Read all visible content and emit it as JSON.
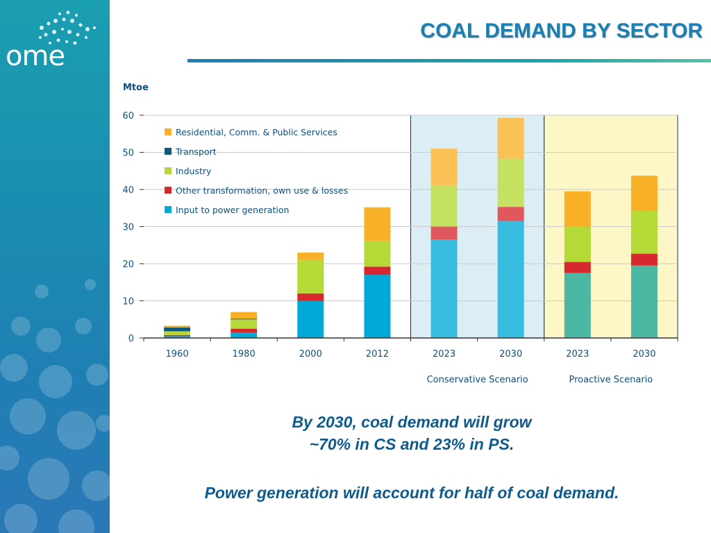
{
  "logo": {
    "text": "ome"
  },
  "slide": {
    "title": "COAL DEMAND BY SECTOR",
    "caption_line1": "By 2030, coal demand will grow",
    "caption_line2": "~70% in CS and 23% in PS.",
    "caption_line3": "Power generation will account for half of  coal demand."
  },
  "chart_data": {
    "type": "bar",
    "stacked": true,
    "ylabel": "Mtoe",
    "ylim": [
      0,
      60
    ],
    "yticks": [
      0,
      10,
      20,
      30,
      40,
      50,
      60
    ],
    "categories": [
      "1960",
      "1980",
      "2000",
      "2012",
      "2023",
      "2030",
      "2023",
      "2030"
    ],
    "groups": [
      {
        "label": "Conservative Scenario",
        "categories": [
          4,
          5
        ],
        "background": "#dbeef5"
      },
      {
        "label": "Proactive Scenario",
        "categories": [
          6,
          7
        ],
        "background": "#fdf6c6"
      }
    ],
    "series": [
      {
        "name": "Input to power generation",
        "color": "#00a9d6",
        "values": [
          0.5,
          1.5,
          10,
          17,
          26.5,
          31.5,
          17.5,
          19.5
        ]
      },
      {
        "name": "Other transformation, own use & losses",
        "color": "#d7282f",
        "values": [
          0.3,
          1,
          2,
          2.2,
          3.5,
          3.8,
          3,
          3.2
        ]
      },
      {
        "name": "Industry",
        "color": "#b5d936",
        "values": [
          1,
          2.5,
          9,
          7,
          11,
          13,
          9.5,
          11.5
        ]
      },
      {
        "name": "Transport",
        "color": "#0e5a7e",
        "values": [
          1,
          0.2,
          0,
          0,
          0,
          0,
          0,
          0
        ]
      },
      {
        "name": "Residential, Comm. & Public Services",
        "color": "#f8b026",
        "values": [
          0.5,
          1.8,
          2,
          9,
          10,
          11,
          9.5,
          9.5
        ]
      }
    ],
    "grid": true,
    "legend_position": "top-left"
  }
}
